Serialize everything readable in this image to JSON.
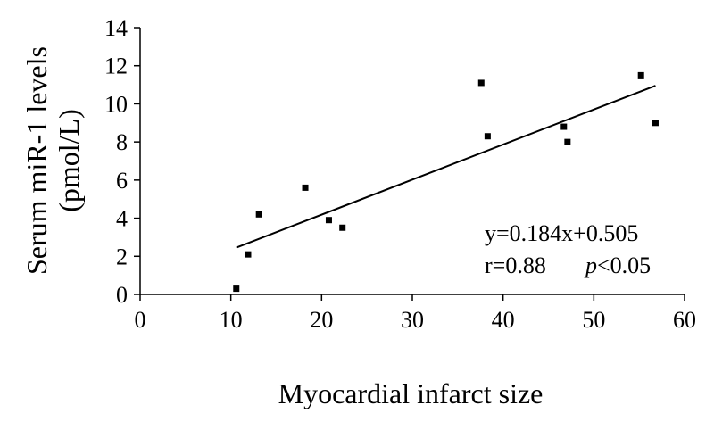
{
  "chart_data": {
    "type": "scatter",
    "xlabel": "Myocardial infarct size",
    "ylabel_lines": [
      "Serum miR-1 levels",
      "(pmol/L)"
    ],
    "xlim": [
      0,
      60
    ],
    "ylim": [
      0,
      14
    ],
    "x_ticks": [
      0,
      10,
      20,
      30,
      40,
      50,
      60
    ],
    "y_ticks": [
      0,
      2,
      4,
      6,
      8,
      10,
      12,
      14
    ],
    "grid": false,
    "marker_color": "#000000",
    "points": [
      {
        "x": 10.6,
        "y": 0.3
      },
      {
        "x": 11.9,
        "y": 2.1
      },
      {
        "x": 13.1,
        "y": 4.2
      },
      {
        "x": 18.2,
        "y": 5.6
      },
      {
        "x": 20.8,
        "y": 3.9
      },
      {
        "x": 22.3,
        "y": 3.5
      },
      {
        "x": 37.6,
        "y": 11.1
      },
      {
        "x": 38.3,
        "y": 8.3
      },
      {
        "x": 46.7,
        "y": 8.8
      },
      {
        "x": 47.1,
        "y": 8.0
      },
      {
        "x": 55.2,
        "y": 11.5
      },
      {
        "x": 56.8,
        "y": 9.0
      }
    ],
    "fit_line": {
      "x_start": 10.6,
      "x_end": 56.8,
      "slope": 0.184,
      "intercept": 0.505
    },
    "annotation": {
      "equation": "y=0.184x+0.505",
      "r_text": "r=0.88",
      "p_letter": "p",
      "p_rest": "<0.05"
    }
  }
}
